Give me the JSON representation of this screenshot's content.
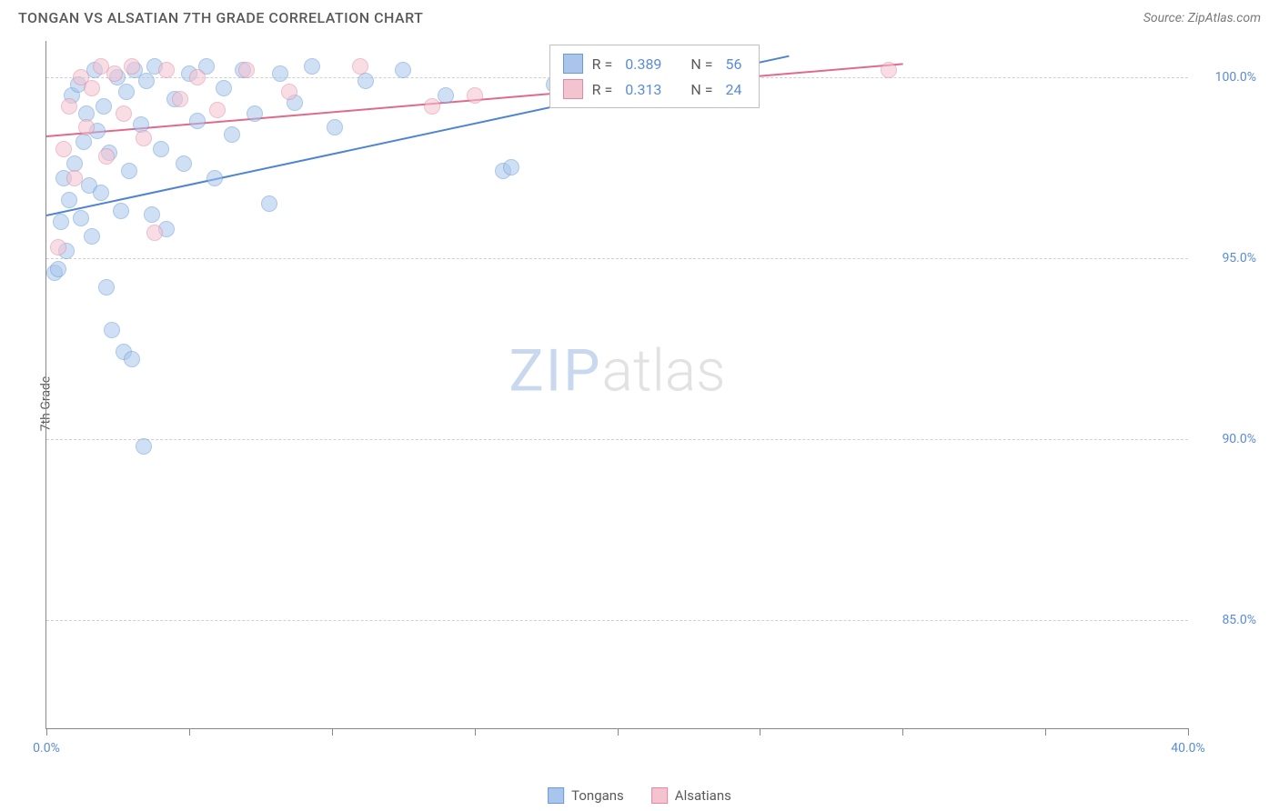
{
  "header": {
    "title": "TONGAN VS ALSATIAN 7TH GRADE CORRELATION CHART",
    "source": "Source: ZipAtlas.com"
  },
  "chart": {
    "type": "scatter",
    "y_axis_label": "7th Grade",
    "xlim": [
      0,
      40
    ],
    "ylim": [
      82,
      101
    ],
    "x_ticks": [
      0,
      5,
      10,
      15,
      20,
      25,
      30,
      35,
      40
    ],
    "x_tick_labels": {
      "0": "0.0%",
      "40": "40.0%"
    },
    "y_ticks": [
      85,
      90,
      95,
      100
    ],
    "y_tick_labels": {
      "85": "85.0%",
      "90": "90.0%",
      "95": "95.0%",
      "100": "100.0%"
    },
    "grid_color": "#d0d0d0",
    "background_color": "#ffffff",
    "axis_color": "#888888",
    "series": [
      {
        "name": "Tongans",
        "fill_color": "#a9c5ec",
        "stroke_color": "#6a9bd8",
        "fill_opacity": 0.55,
        "marker_radius": 9,
        "r_value": "0.389",
        "n_value": "56",
        "regression": {
          "x1": 0,
          "y1": 96.2,
          "x2": 26,
          "y2": 100.6,
          "color": "#4f84d0"
        },
        "points": [
          [
            0.3,
            94.6
          ],
          [
            0.4,
            94.7
          ],
          [
            0.5,
            96.0
          ],
          [
            0.6,
            97.2
          ],
          [
            0.7,
            95.2
          ],
          [
            0.8,
            96.6
          ],
          [
            0.9,
            99.5
          ],
          [
            1.0,
            97.6
          ],
          [
            1.1,
            99.8
          ],
          [
            1.2,
            96.1
          ],
          [
            1.3,
            98.2
          ],
          [
            1.4,
            99.0
          ],
          [
            1.5,
            97.0
          ],
          [
            1.6,
            95.6
          ],
          [
            1.7,
            100.2
          ],
          [
            1.8,
            98.5
          ],
          [
            1.9,
            96.8
          ],
          [
            2.0,
            99.2
          ],
          [
            2.1,
            94.2
          ],
          [
            2.2,
            97.9
          ],
          [
            2.3,
            93.0
          ],
          [
            2.5,
            100.0
          ],
          [
            2.6,
            96.3
          ],
          [
            2.7,
            92.4
          ],
          [
            2.8,
            99.6
          ],
          [
            2.9,
            97.4
          ],
          [
            3.0,
            92.2
          ],
          [
            3.1,
            100.2
          ],
          [
            3.3,
            98.7
          ],
          [
            3.4,
            89.8
          ],
          [
            3.5,
            99.9
          ],
          [
            3.7,
            96.2
          ],
          [
            3.8,
            100.3
          ],
          [
            4.0,
            98.0
          ],
          [
            4.2,
            95.8
          ],
          [
            4.5,
            99.4
          ],
          [
            4.8,
            97.6
          ],
          [
            5.0,
            100.1
          ],
          [
            5.3,
            98.8
          ],
          [
            5.6,
            100.3
          ],
          [
            5.9,
            97.2
          ],
          [
            6.2,
            99.7
          ],
          [
            6.5,
            98.4
          ],
          [
            6.9,
            100.2
          ],
          [
            7.3,
            99.0
          ],
          [
            7.8,
            96.5
          ],
          [
            8.2,
            100.1
          ],
          [
            8.7,
            99.3
          ],
          [
            9.3,
            100.3
          ],
          [
            10.1,
            98.6
          ],
          [
            11.2,
            99.9
          ],
          [
            12.5,
            100.2
          ],
          [
            14.0,
            99.5
          ],
          [
            16.0,
            97.4
          ],
          [
            16.3,
            97.5
          ],
          [
            17.8,
            99.8
          ]
        ]
      },
      {
        "name": "Alsatians",
        "fill_color": "#f4c3d0",
        "stroke_color": "#e389a5",
        "fill_opacity": 0.55,
        "marker_radius": 9,
        "r_value": "0.313",
        "n_value": "24",
        "regression": {
          "x1": 0,
          "y1": 98.4,
          "x2": 30,
          "y2": 100.4,
          "color": "#e06a8c"
        },
        "points": [
          [
            0.4,
            95.3
          ],
          [
            0.6,
            98.0
          ],
          [
            0.8,
            99.2
          ],
          [
            1.0,
            97.2
          ],
          [
            1.2,
            100.0
          ],
          [
            1.4,
            98.6
          ],
          [
            1.6,
            99.7
          ],
          [
            1.9,
            100.3
          ],
          [
            2.1,
            97.8
          ],
          [
            2.4,
            100.1
          ],
          [
            2.7,
            99.0
          ],
          [
            3.0,
            100.3
          ],
          [
            3.4,
            98.3
          ],
          [
            3.8,
            95.7
          ],
          [
            4.2,
            100.2
          ],
          [
            4.7,
            99.4
          ],
          [
            5.3,
            100.0
          ],
          [
            6.0,
            99.1
          ],
          [
            7.0,
            100.2
          ],
          [
            8.5,
            99.6
          ],
          [
            11.0,
            100.3
          ],
          [
            13.5,
            99.2
          ],
          [
            15.0,
            99.5
          ],
          [
            29.5,
            100.2
          ]
        ]
      }
    ],
    "stats_legend": {
      "r_label": "R =",
      "n_label": "N =",
      "border_color": "#c0c0c0",
      "text_color": "#5a5a5a",
      "value_color": "#5a8cd6"
    },
    "watermark": {
      "part1": "ZIP",
      "part2": "atlas"
    }
  }
}
